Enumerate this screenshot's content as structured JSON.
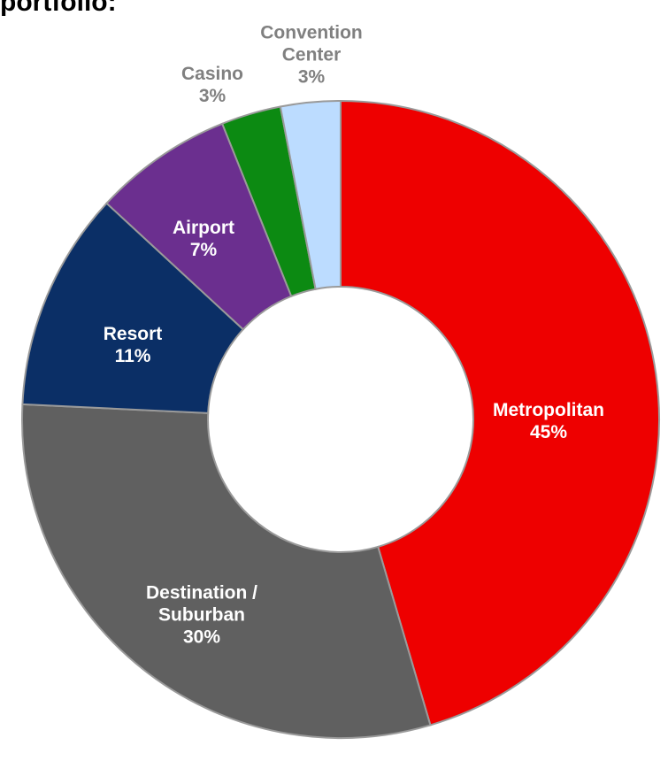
{
  "chart_data": {
    "type": "donut",
    "title": "portfolio:",
    "categories": [
      "Metropolitan",
      "Destination / Suburban",
      "Resort",
      "Airport",
      "Casino",
      "Convention Center"
    ],
    "values": [
      45,
      30,
      11,
      7,
      3,
      3
    ],
    "value_labels": [
      "45%",
      "30%",
      "11%",
      "7%",
      "3%",
      "3%"
    ],
    "colors": [
      "#ee0000",
      "#606060",
      "#0b2f66",
      "#6b2f8f",
      "#0c8a12",
      "#bcdcff"
    ]
  }
}
